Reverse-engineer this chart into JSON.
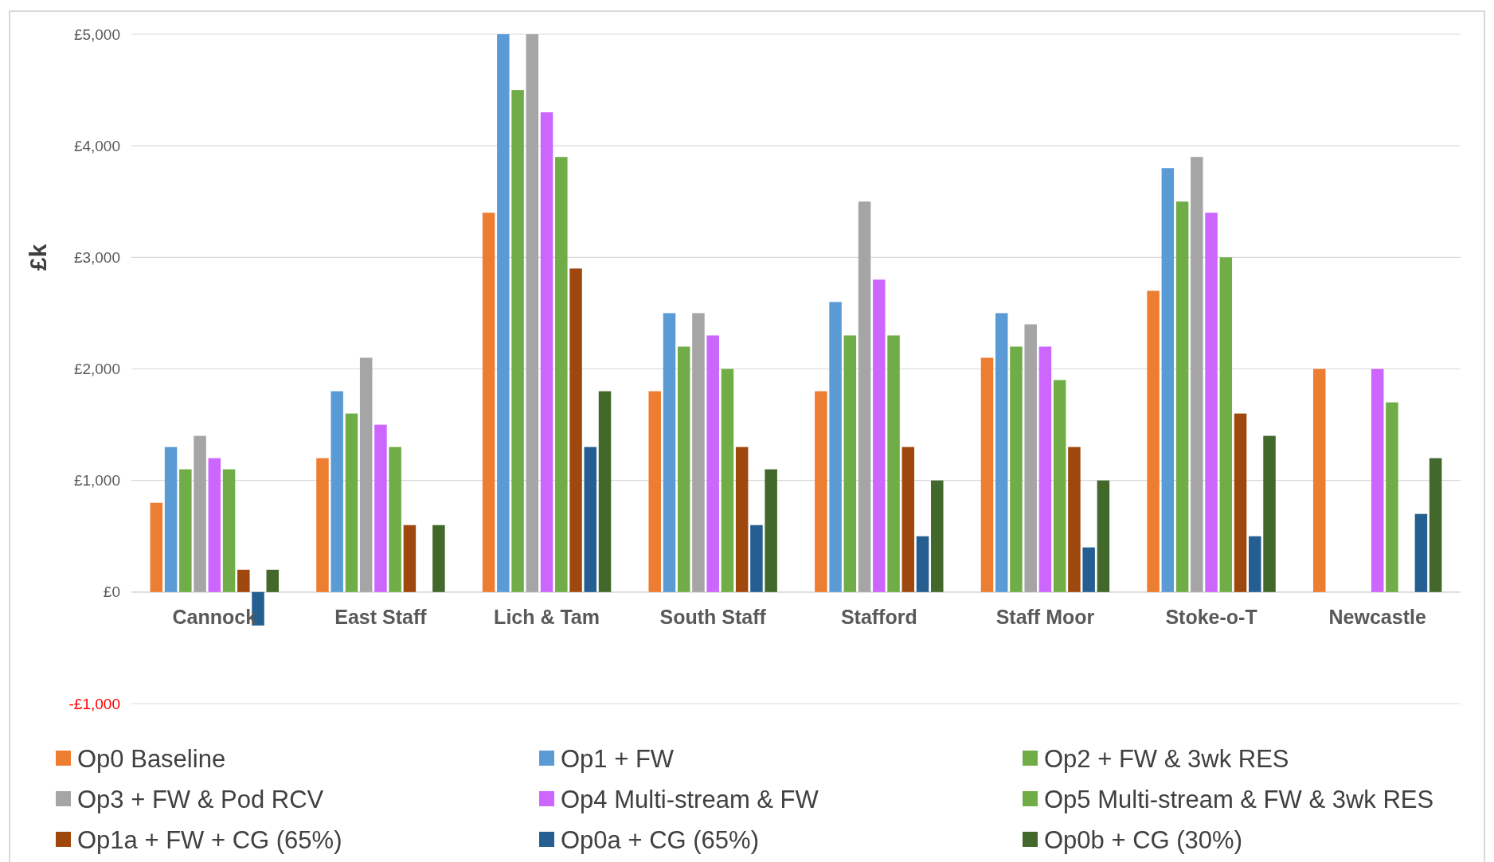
{
  "chart_data": {
    "type": "bar",
    "ylabel": "£k",
    "categories": [
      "Cannock",
      "East Staff",
      "Lich & Tam",
      "South Staff",
      "Stafford",
      "Staff Moor",
      "Stoke-o-T",
      "Newcastle"
    ],
    "series": [
      {
        "name": "Op0 Baseline",
        "color": "#ed7d31",
        "values": [
          800,
          1200,
          3400,
          1800,
          1800,
          2100,
          2700,
          2000
        ]
      },
      {
        "name": "Op1 + FW",
        "color": "#5b9bd5",
        "values": [
          1300,
          1800,
          5000,
          2500,
          2600,
          2500,
          3800,
          null
        ]
      },
      {
        "name": "Op2 + FW & 3wk RES",
        "color": "#70ad47",
        "values": [
          1100,
          1600,
          4500,
          2200,
          2300,
          2200,
          3500,
          null
        ]
      },
      {
        "name": "Op3 + FW & Pod RCV",
        "color": "#a5a5a5",
        "values": [
          1400,
          2100,
          5000,
          2500,
          3500,
          2400,
          3900,
          null
        ]
      },
      {
        "name": "Op4 Multi-stream & FW",
        "color": "#cc66ff",
        "values": [
          1200,
          1500,
          4300,
          2300,
          2800,
          2200,
          3400,
          2000
        ]
      },
      {
        "name": "Op5 Multi-stream & FW & 3wk RES",
        "color": "#70ad47",
        "values": [
          1100,
          1300,
          3900,
          2000,
          2300,
          1900,
          3000,
          1700
        ]
      },
      {
        "name": "Op1a + FW + CG (65%)",
        "color": "#9e480e",
        "values": [
          200,
          600,
          2900,
          1300,
          1300,
          1300,
          1600,
          null
        ]
      },
      {
        "name": "Op0a + CG (65%)",
        "color": "#255e91",
        "values": [
          -300,
          null,
          1300,
          600,
          500,
          400,
          500,
          700
        ]
      },
      {
        "name": "Op0b + CG (30%)",
        "color": "#43682b",
        "values": [
          200,
          600,
          1800,
          1100,
          1000,
          1000,
          1400,
          1200
        ]
      }
    ],
    "ylim": [
      -1000,
      5000
    ],
    "yticks": [
      {
        "value": -1000,
        "label": "-£1,000"
      },
      {
        "value": 0,
        "label": "£0"
      },
      {
        "value": 1000,
        "label": "£1,000"
      },
      {
        "value": 2000,
        "label": "£2,000"
      },
      {
        "value": 3000,
        "label": "£3,000"
      },
      {
        "value": 4000,
        "label": "£4,000"
      },
      {
        "value": 5000,
        "label": "£5,000"
      }
    ],
    "grid": "y",
    "legend": "bottom"
  }
}
